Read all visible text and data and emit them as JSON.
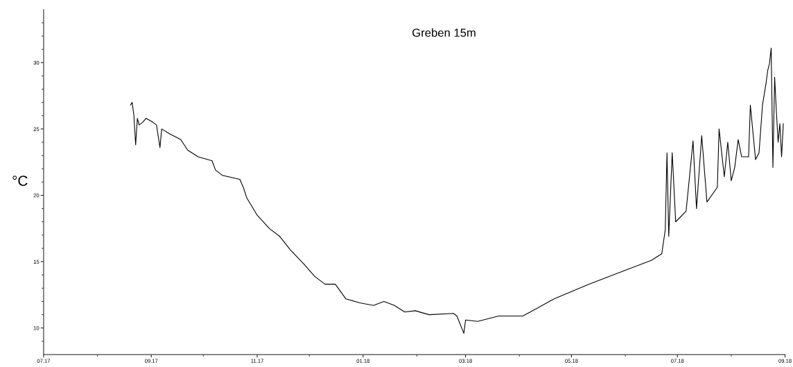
{
  "chart_data": {
    "type": "line",
    "title": "Greben 15m",
    "ylabel": "°C",
    "x": [
      "2017-08-20",
      "2017-08-21",
      "2017-08-22",
      "2017-08-23",
      "2017-08-24",
      "2017-08-25",
      "2017-08-27",
      "2017-08-29",
      "2017-09-02",
      "2017-09-04",
      "2017-09-06",
      "2017-09-07",
      "2017-09-12",
      "2017-09-18",
      "2017-09-22",
      "2017-09-28",
      "2017-10-06",
      "2017-10-08",
      "2017-10-12",
      "2017-10-22",
      "2017-10-24",
      "2017-10-26",
      "2017-11-01",
      "2017-11-08",
      "2017-11-14",
      "2017-11-20",
      "2017-11-28",
      "2017-12-04",
      "2017-12-10",
      "2017-12-16",
      "2017-12-22",
      "2017-12-30",
      "2018-01-07",
      "2018-01-13",
      "2018-01-19",
      "2018-01-25",
      "2018-01-31",
      "2018-02-08",
      "2018-02-22",
      "2018-02-24",
      "2018-02-28",
      "2018-03-01",
      "2018-03-08",
      "2018-03-20",
      "2018-04-03",
      "2018-04-21",
      "2018-05-11",
      "2018-05-31",
      "2018-06-16",
      "2018-06-22",
      "2018-06-24",
      "2018-06-25",
      "2018-06-26",
      "2018-06-28",
      "2018-06-30",
      "2018-07-06",
      "2018-07-10",
      "2018-07-12",
      "2018-07-15",
      "2018-07-18",
      "2018-07-24",
      "2018-07-25",
      "2018-07-28",
      "2018-07-30",
      "2018-08-01",
      "2018-08-03",
      "2018-08-05",
      "2018-08-07",
      "2018-08-11",
      "2018-08-12",
      "2018-08-15",
      "2018-08-17",
      "2018-08-19",
      "2018-08-21",
      "2018-08-22",
      "2018-08-23",
      "2018-08-24",
      "2018-08-25",
      "2018-08-26",
      "2018-08-27",
      "2018-08-28",
      "2018-08-29",
      "2018-08-30",
      "2018-08-31"
    ],
    "series": [
      {
        "color": "#000000",
        "values": [
          26.8,
          27.0,
          26.0,
          23.8,
          25.8,
          25.3,
          25.5,
          25.8,
          25.5,
          25.3,
          23.6,
          25.0,
          24.6,
          24.2,
          23.4,
          22.9,
          22.6,
          21.9,
          21.5,
          21.2,
          20.6,
          19.8,
          18.5,
          17.5,
          16.9,
          15.9,
          14.8,
          13.9,
          13.3,
          13.3,
          12.2,
          11.9,
          11.7,
          12.0,
          11.7,
          11.2,
          11.3,
          11.0,
          11.1,
          10.9,
          9.6,
          10.6,
          10.5,
          10.9,
          10.9,
          12.2,
          13.3,
          14.3,
          15.1,
          15.6,
          17.4,
          23.2,
          16.9,
          23.2,
          18.0,
          18.8,
          24.1,
          19.0,
          24.5,
          19.5,
          20.6,
          25.0,
          21.4,
          24.0,
          21.1,
          22.1,
          24.2,
          22.9,
          22.9,
          26.8,
          22.7,
          23.2,
          26.8,
          28.4,
          29.4,
          29.9,
          31.1,
          22.1,
          28.9,
          26.3,
          24.0,
          25.4,
          22.9,
          25.4
        ]
      }
    ],
    "xlim": [
      "2017-07-01",
      "2018-09-01"
    ],
    "xticks": [
      {
        "value": "2017-07-01",
        "label": "07.17"
      },
      {
        "value": "2017-08-01",
        "label": null
      },
      {
        "value": "2017-09-01",
        "label": "09.17"
      },
      {
        "value": "2017-10-01",
        "label": null
      },
      {
        "value": "2017-11-01",
        "label": "11.17"
      },
      {
        "value": "2017-12-01",
        "label": null
      },
      {
        "value": "2018-01-01",
        "label": "01.18"
      },
      {
        "value": "2018-02-01",
        "label": null
      },
      {
        "value": "2018-03-01",
        "label": "03.18"
      },
      {
        "value": "2018-04-01",
        "label": null
      },
      {
        "value": "2018-05-01",
        "label": "05.18"
      },
      {
        "value": "2018-06-01",
        "label": null
      },
      {
        "value": "2018-07-01",
        "label": "07.18"
      },
      {
        "value": "2018-08-01",
        "label": null
      },
      {
        "value": "2018-09-01",
        "label": "09.18"
      }
    ],
    "ylim": [
      8,
      34
    ],
    "yticks": [
      {
        "value": 9,
        "label": null
      },
      10,
      {
        "value": 11,
        "label": null
      },
      {
        "value": 12,
        "label": null
      },
      {
        "value": 13,
        "label": null
      },
      {
        "value": 14,
        "label": null
      },
      15,
      {
        "value": 16,
        "label": null
      },
      {
        "value": 17,
        "label": null
      },
      {
        "value": 18,
        "label": null
      },
      {
        "value": 19,
        "label": null
      },
      20,
      {
        "value": 21,
        "label": null
      },
      {
        "value": 22,
        "label": null
      },
      {
        "value": 23,
        "label": null
      },
      {
        "value": 24,
        "label": null
      },
      25,
      {
        "value": 26,
        "label": null
      },
      {
        "value": 27,
        "label": null
      },
      {
        "value": 28,
        "label": null
      },
      {
        "value": 29,
        "label": null
      },
      30,
      {
        "value": 31,
        "label": null
      },
      {
        "value": 32,
        "label": null
      },
      {
        "value": 33,
        "label": null
      }
    ],
    "grid": false,
    "legend": false,
    "marker": "none",
    "line_style": "solid"
  }
}
